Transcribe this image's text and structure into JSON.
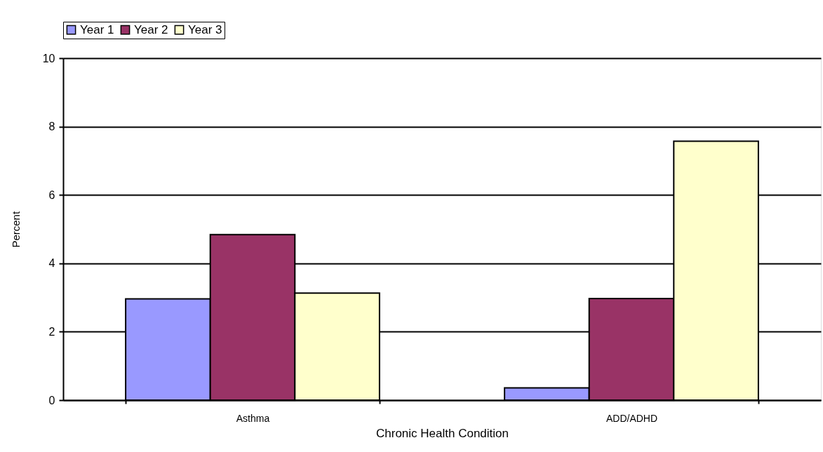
{
  "chart_data": {
    "type": "bar",
    "xlabel": "Chronic Health Condition",
    "ylabel": "Percent",
    "categories": [
      "Asthma",
      "ADD/ADHD"
    ],
    "series": [
      {
        "name": "Year 1",
        "color": "#9999ff",
        "values": [
          2.96,
          0.36
        ]
      },
      {
        "name": "Year 2",
        "color": "#993366",
        "values": [
          4.84,
          2.97
        ]
      },
      {
        "name": "Year 3",
        "color": "#ffffcc",
        "values": [
          3.13,
          7.57
        ]
      }
    ],
    "ylim": [
      0,
      10
    ],
    "yticks": [
      0,
      2,
      4,
      6,
      8,
      10
    ],
    "grid": "y",
    "legend": "top"
  }
}
